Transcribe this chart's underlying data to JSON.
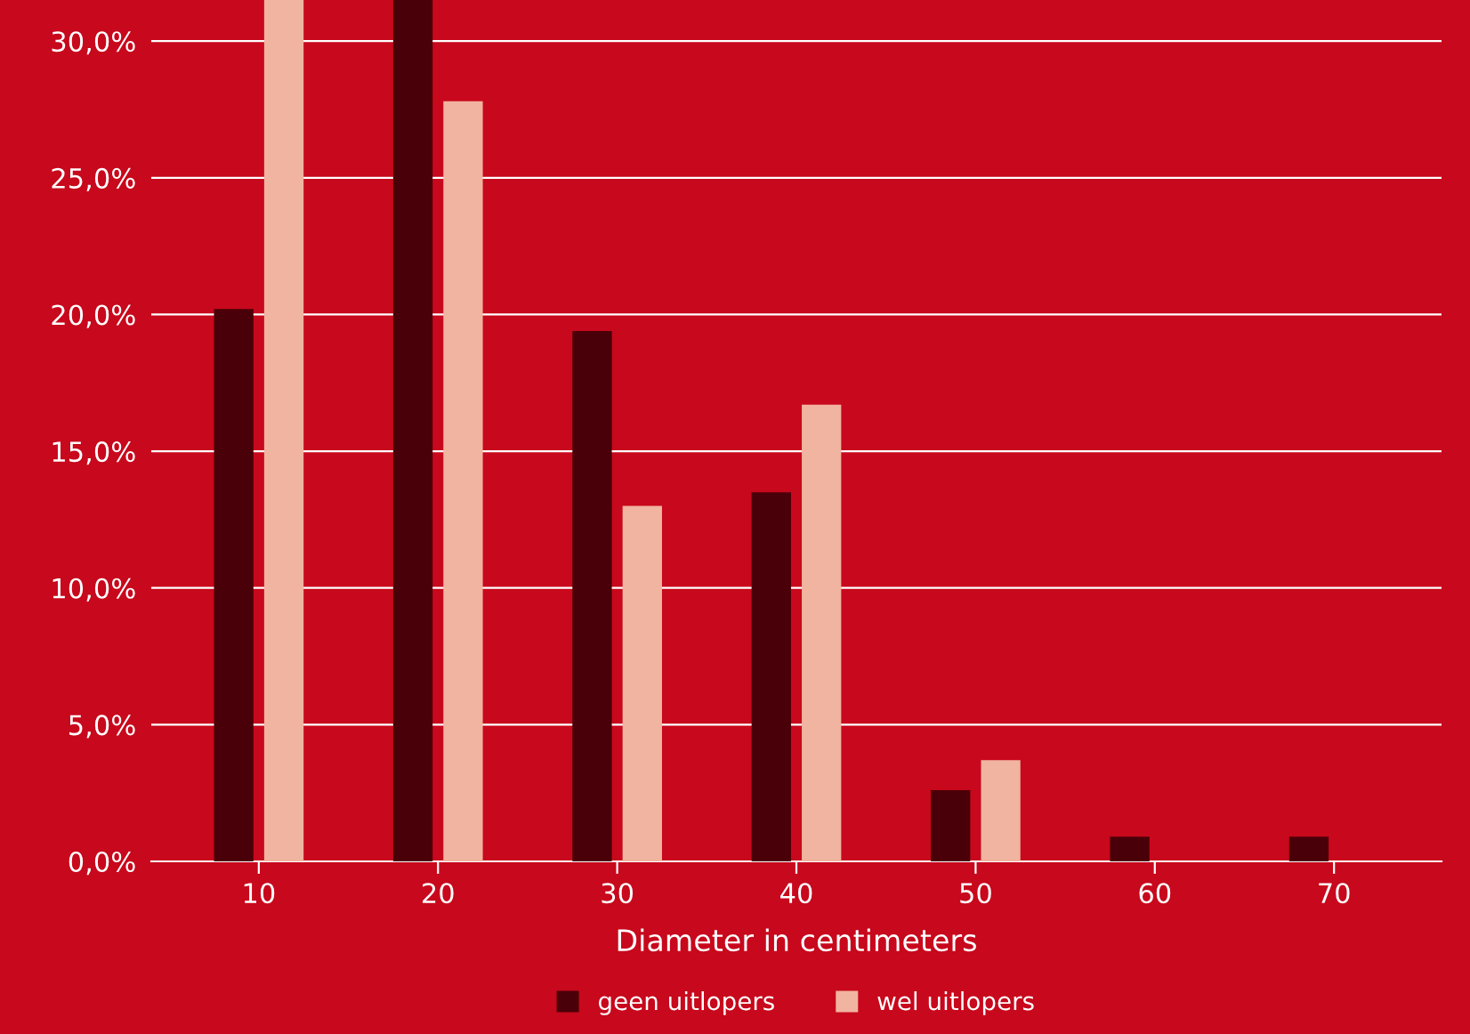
{
  "chart_data": {
    "type": "bar",
    "xlabel": "Diameter in centimeters",
    "categories": [
      "10",
      "20",
      "30",
      "40",
      "50",
      "60",
      "70"
    ],
    "series": [
      {
        "name": "geen uitlopers",
        "color": "#4a0008",
        "values": [
          20.2,
          31.5,
          19.4,
          13.5,
          2.6,
          0.9,
          0.9
        ]
      },
      {
        "name": "wel uitlopers",
        "color": "#f0b4a0",
        "values": [
          31.5,
          27.8,
          13.0,
          16.7,
          3.7,
          0,
          0
        ]
      }
    ],
    "ylim": [
      0,
      31.5
    ],
    "yticks": [
      {
        "value": 0,
        "label": "0,0%"
      },
      {
        "value": 5,
        "label": "5,0%"
      },
      {
        "value": 10,
        "label": "10,0%"
      },
      {
        "value": 15,
        "label": "15,0%"
      },
      {
        "value": 20,
        "label": "20,0%"
      },
      {
        "value": 25,
        "label": "25,0%"
      },
      {
        "value": 30,
        "label": "30,0%"
      }
    ],
    "grid": "y",
    "legend": "bottom"
  }
}
